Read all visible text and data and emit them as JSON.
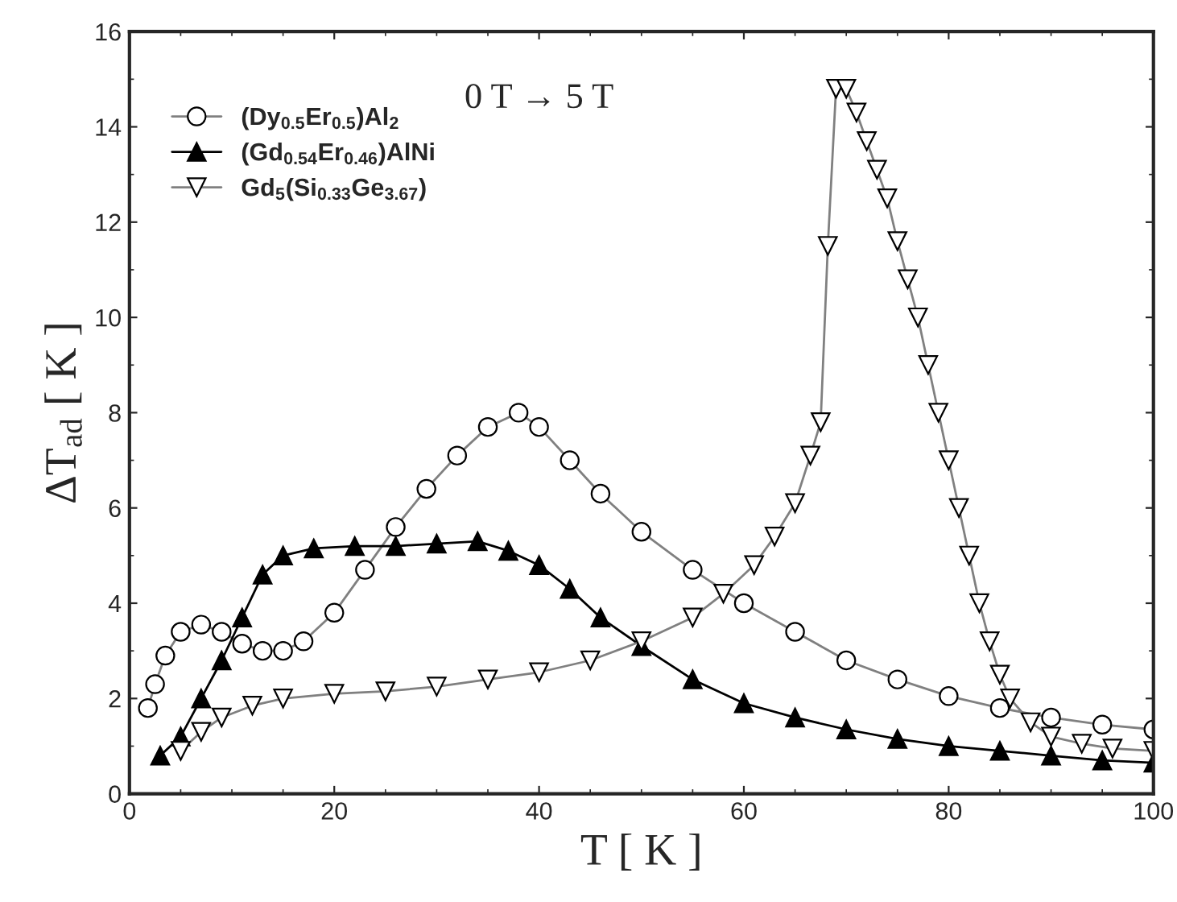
{
  "chart_data": {
    "type": "line",
    "xlabel": "T [ K ]",
    "ylabel": "ΔT$_{ad}$ [ K ]",
    "annotations": [
      "0 T → 5 T"
    ],
    "xlim": [
      0,
      100
    ],
    "xticks": [
      0,
      20,
      40,
      60,
      80,
      100
    ],
    "ylim": [
      0,
      16
    ],
    "yticks": [
      0,
      2,
      4,
      6,
      8,
      10,
      12,
      14,
      16
    ],
    "grid": false,
    "legend": "top left",
    "series": [
      {
        "name": "(Dy$_{0.5}$Er$_{0.5}$)Al$_{2}$",
        "color": "#808080",
        "marker": "circle",
        "x": [
          1.8,
          2.5,
          3.5,
          5,
          7,
          9,
          11,
          13,
          15,
          17,
          20,
          23,
          26,
          29,
          32,
          35,
          38,
          40,
          43,
          46,
          50,
          55,
          60,
          65,
          70,
          75,
          80,
          85,
          90,
          95,
          100
        ],
        "values": [
          1.8,
          2.3,
          2.9,
          3.4,
          3.55,
          3.4,
          3.15,
          3.0,
          3.0,
          3.2,
          3.8,
          4.7,
          5.6,
          6.4,
          7.1,
          7.7,
          8.0,
          7.7,
          7.0,
          6.3,
          5.5,
          4.7,
          4.0,
          3.4,
          2.8,
          2.4,
          2.05,
          1.8,
          1.6,
          1.45,
          1.35
        ]
      },
      {
        "name": "(Gd$_{0.54}$Er$_{0.46}$)AlNi",
        "color": "#000000",
        "marker": "triangle",
        "x": [
          3,
          5,
          7,
          9,
          11,
          13,
          15,
          18,
          22,
          26,
          30,
          34,
          37,
          40,
          43,
          46,
          50,
          55,
          60,
          65,
          70,
          75,
          80,
          85,
          90,
          95,
          100
        ],
        "values": [
          0.8,
          1.2,
          2.0,
          2.8,
          3.7,
          4.6,
          5.0,
          5.15,
          5.2,
          5.2,
          5.25,
          5.3,
          5.1,
          4.8,
          4.3,
          3.7,
          3.1,
          2.4,
          1.9,
          1.6,
          1.35,
          1.15,
          1.0,
          0.9,
          0.8,
          0.7,
          0.65
        ]
      },
      {
        "name": "Gd$_{5}$(Si$_{0.33}$Ge$_{3.67}$)",
        "color": "#808080",
        "marker": "triangle_down",
        "x": [
          5,
          7,
          9,
          12,
          15,
          20,
          25,
          30,
          35,
          40,
          45,
          50,
          55,
          58,
          61,
          63,
          65,
          66.5,
          67.5,
          68.2,
          69,
          70,
          71,
          72,
          73,
          74,
          75,
          76,
          77,
          78,
          79,
          80,
          81,
          82,
          83,
          84,
          85,
          86,
          88,
          90,
          93,
          96,
          100
        ],
        "values": [
          0.9,
          1.3,
          1.6,
          1.85,
          2.0,
          2.1,
          2.15,
          2.25,
          2.4,
          2.55,
          2.8,
          3.2,
          3.7,
          4.2,
          4.8,
          5.4,
          6.1,
          7.1,
          7.8,
          11.5,
          14.8,
          14.8,
          14.3,
          13.7,
          13.1,
          12.5,
          11.6,
          10.8,
          10.0,
          9.0,
          8.0,
          7.0,
          6.0,
          5.0,
          4.0,
          3.2,
          2.5,
          2.0,
          1.5,
          1.2,
          1.05,
          0.95,
          0.9
        ]
      }
    ]
  }
}
